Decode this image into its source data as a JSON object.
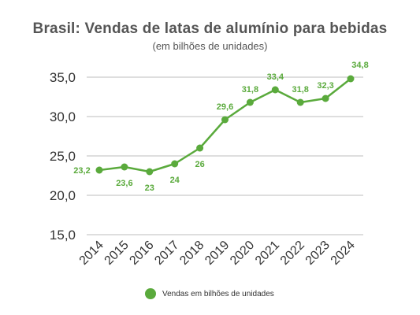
{
  "title": "Brasil: Vendas de latas de alumínio para bebidas",
  "subtitle": "(em bilhões de unidades)",
  "colors": {
    "series": "#5aaa3c",
    "grid": "#bdbdbd",
    "text": "#333333"
  },
  "chart_data": {
    "type": "line",
    "title": "Brasil: Vendas de latas de alumínio para bebidas",
    "subtitle": "(em bilhões de unidades)",
    "xlabel": "",
    "ylabel": "",
    "x": [
      "2014",
      "2015",
      "2016",
      "2017",
      "2018",
      "2019",
      "2020",
      "2021",
      "2022",
      "2023",
      "2024"
    ],
    "series": [
      {
        "name": "Vendas em bilhões de unidades",
        "values": [
          23.2,
          23.6,
          23.0,
          24.0,
          26.0,
          29.6,
          31.8,
          33.4,
          31.8,
          32.3,
          34.8
        ],
        "labels": [
          "23,2",
          "23,6",
          "23",
          "24",
          "26",
          "29,6",
          "31,8",
          "33,4",
          "31,8",
          "32,3",
          "34,8"
        ]
      }
    ],
    "yticks": [
      15,
      20,
      25,
      30,
      35
    ],
    "ytick_labels": [
      "15,0",
      "20,0",
      "25,0",
      "30,0",
      "35,0"
    ],
    "ylim": [
      15,
      35
    ],
    "grid": true,
    "legend_position": "bottom-center"
  }
}
